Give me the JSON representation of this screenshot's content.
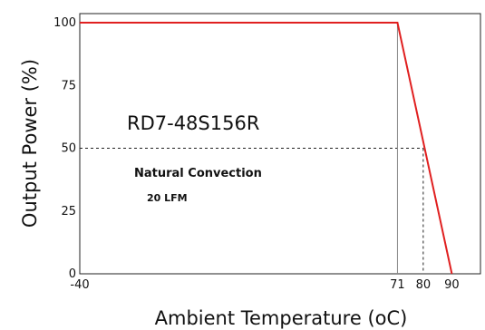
{
  "chart_data": {
    "type": "line",
    "xlabel": "Ambient Temperature (oC)",
    "ylabel": "Output Power (%)",
    "xlim": [
      -40,
      100
    ],
    "ylim": [
      0,
      100
    ],
    "x_ticks": [
      -40,
      71,
      80,
      90
    ],
    "y_ticks": [
      0,
      25,
      50,
      75,
      100
    ],
    "grid": false,
    "series": [
      {
        "color": "#e02020",
        "points": [
          {
            "x": -40,
            "y": 100
          },
          {
            "x": 71,
            "y": 100
          },
          {
            "x": 90,
            "y": 0
          }
        ]
      }
    ],
    "reference_lines": {
      "horizontal_y": 50,
      "vertical_x": [
        71,
        80
      ]
    },
    "annotations": {
      "model": "RD7-48S156R",
      "condition": "Natural Convection",
      "airflow": "20 LFM"
    }
  }
}
